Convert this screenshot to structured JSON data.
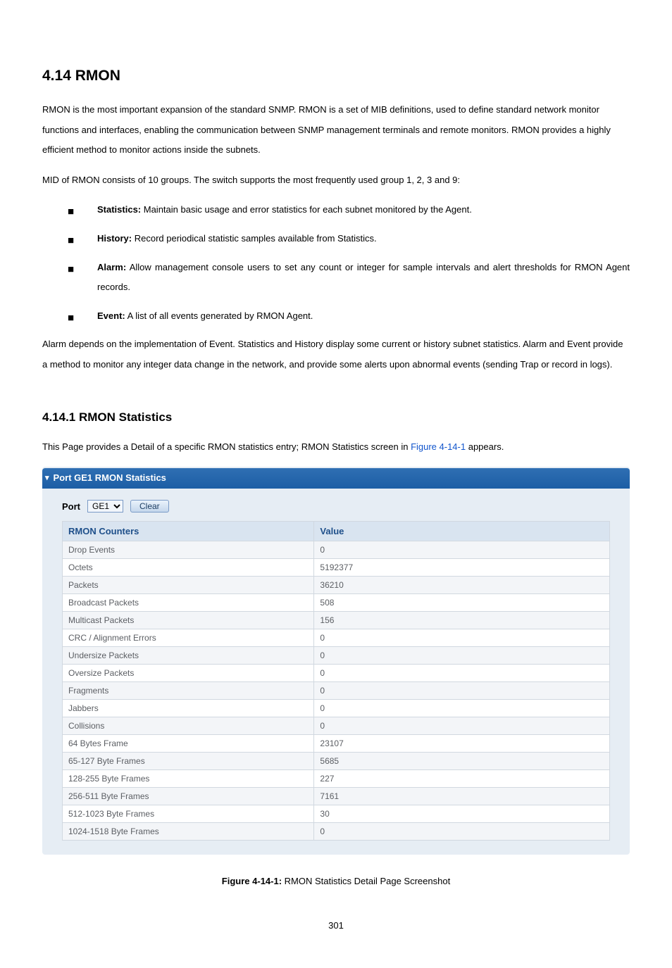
{
  "heading": "4.14 RMON",
  "intro_p1": "RMON is the most important expansion of the standard SNMP. RMON is a set of MIB definitions, used to define standard network monitor functions and interfaces, enabling the communication between SNMP management terminals and remote monitors. RMON provides a highly efficient method to monitor actions inside the subnets.",
  "intro_p2": "MID of RMON consists of 10 groups. The switch supports the most frequently used group 1, 2, 3 and 9:",
  "bullets": [
    {
      "label": "Statistics:",
      "text": " Maintain basic usage and error statistics for each subnet monitored by the Agent."
    },
    {
      "label": "History:",
      "text": " Record periodical statistic samples available from Statistics."
    },
    {
      "label": "Alarm:",
      "text": " Allow management console users to set any count or integer for sample intervals and alert thresholds for RMON Agent records."
    },
    {
      "label": "Event:",
      "text": " A list of all events generated by RMON Agent."
    }
  ],
  "after_bullets": "Alarm depends on the implementation of Event. Statistics and History display some current or history subnet statistics. Alarm and Event provide a method to monitor any integer data change in the network, and provide some alerts upon abnormal events (sending Trap or record in logs).",
  "subheading": "4.14.1 RMON Statistics",
  "sub_intro_pre": "This Page provides a Detail of a specific RMON statistics entry; RMON Statistics screen in ",
  "sub_intro_link": "Figure 4-14-1",
  "sub_intro_post": " appears.",
  "panel": {
    "title": "Port GE1 RMON Statistics",
    "port_label": "Port",
    "port_value": "GE1",
    "clear_label": "Clear",
    "columns": {
      "counters": "RMON Counters",
      "value": "Value"
    },
    "rows": [
      {
        "name": "Drop Events",
        "value": "0"
      },
      {
        "name": "Octets",
        "value": "5192377"
      },
      {
        "name": "Packets",
        "value": "36210"
      },
      {
        "name": "Broadcast Packets",
        "value": "508"
      },
      {
        "name": "Multicast Packets",
        "value": "156"
      },
      {
        "name": "CRC / Alignment Errors",
        "value": "0"
      },
      {
        "name": "Undersize Packets",
        "value": "0"
      },
      {
        "name": "Oversize Packets",
        "value": "0"
      },
      {
        "name": "Fragments",
        "value": "0"
      },
      {
        "name": "Jabbers",
        "value": "0"
      },
      {
        "name": "Collisions",
        "value": "0"
      },
      {
        "name": "64 Bytes Frame",
        "value": "23107"
      },
      {
        "name": "65-127 Byte Frames",
        "value": "5685"
      },
      {
        "name": "128-255 Byte Frames",
        "value": "227"
      },
      {
        "name": "256-511 Byte Frames",
        "value": "7161"
      },
      {
        "name": "512-1023 Byte Frames",
        "value": "30"
      },
      {
        "name": "1024-1518 Byte Frames",
        "value": "0"
      }
    ]
  },
  "figure_caption_bold": "Figure 4-14-1:",
  "figure_caption_rest": " RMON Statistics Detail Page Screenshot",
  "page_number": "301",
  "colors": {
    "panel_bg": "#e6edf4",
    "titlebar_grad_top": "#2f6fb3",
    "titlebar_grad_bottom": "#1c5ea5",
    "th_bg": "#d9e4f0",
    "th_color": "#1e4f8a",
    "row_alt_bg": "#f3f5f8",
    "cell_text": "#5b5e63",
    "link": "#1155cc"
  }
}
